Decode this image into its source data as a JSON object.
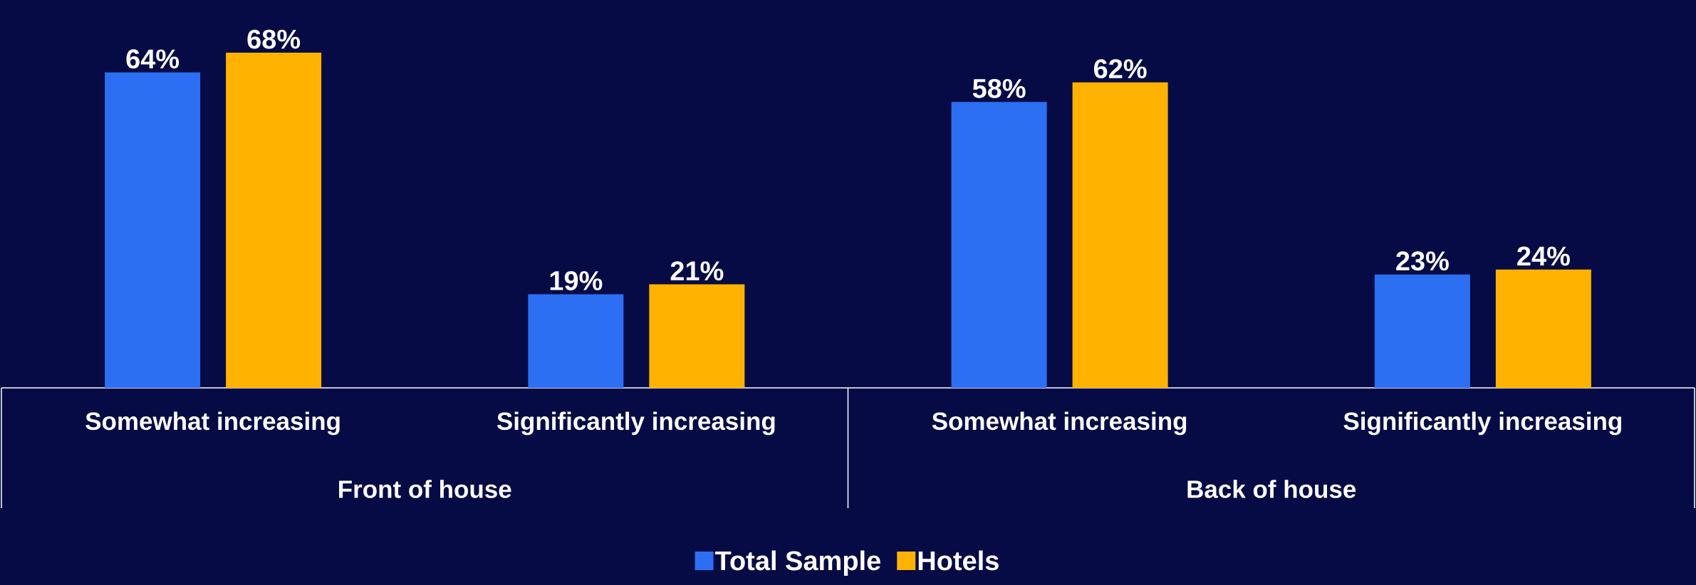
{
  "chart_data": {
    "type": "bar",
    "categories": [
      "Somewhat increasing",
      "Significantly increasing",
      "Somewhat increasing",
      "Significantly increasing"
    ],
    "annotations": [
      "Front of house",
      "Back of house"
    ],
    "series": [
      {
        "name": "Total Sample",
        "color": "#2c6ff3",
        "values": [
          64,
          19,
          58,
          23
        ],
        "value_labels": [
          "64%",
          "19%",
          "58%",
          "23%"
        ]
      },
      {
        "name": "Hotels",
        "color": "#ffb300",
        "values": [
          68,
          21,
          62,
          24
        ],
        "value_labels": [
          "68%",
          "21%",
          "62%",
          "24%"
        ]
      }
    ],
    "legend": "bottom"
  }
}
